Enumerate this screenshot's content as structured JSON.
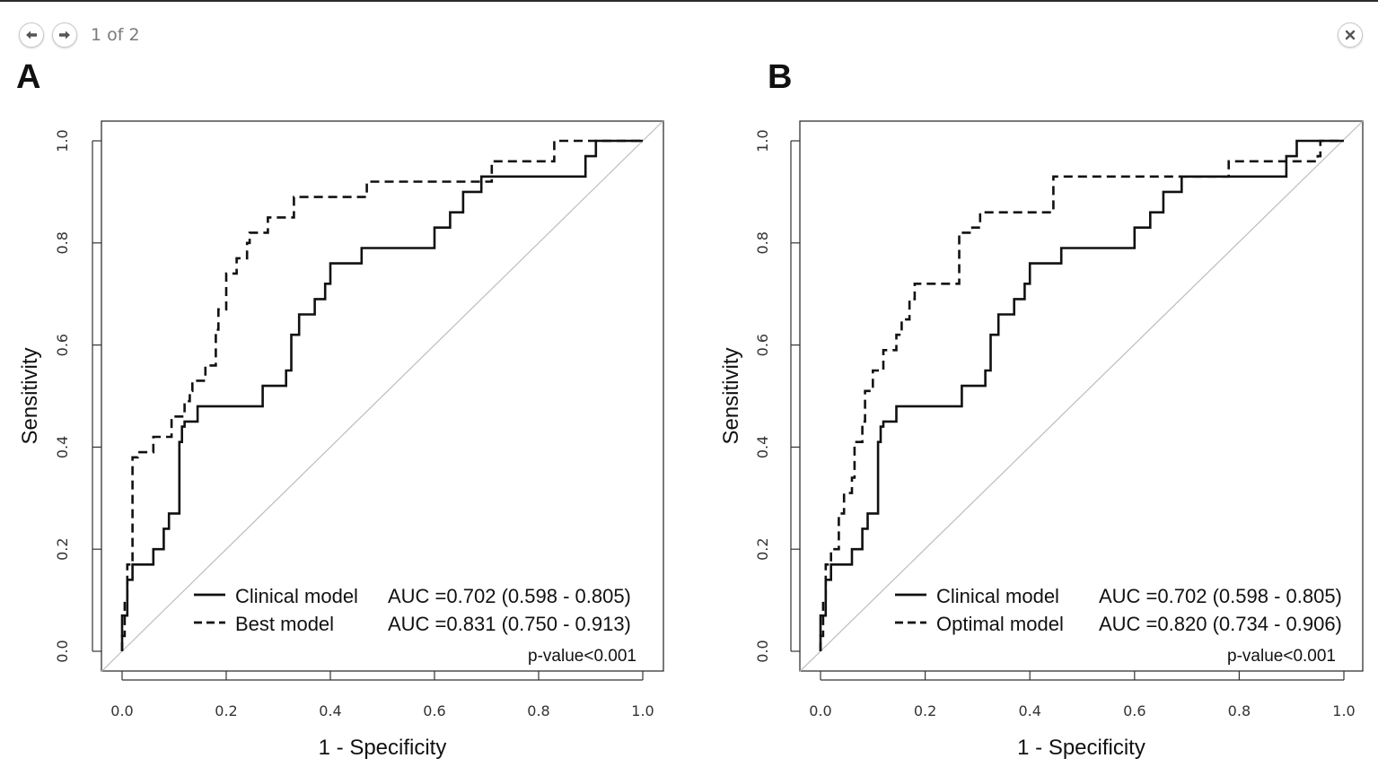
{
  "viewer": {
    "page_indicator": "1 of 2",
    "prev_icon": "arrow-left-icon",
    "next_icon": "arrow-right-icon",
    "close_icon": "close-icon"
  },
  "chart_data": [
    {
      "panel_label": "A",
      "type": "line",
      "subtype": "roc",
      "xlabel": "1 - Specificity",
      "ylabel": "Sensitivity",
      "xlim": [
        0,
        1
      ],
      "ylim": [
        0,
        1
      ],
      "xticks": [
        "0.0",
        "0.2",
        "0.4",
        "0.6",
        "0.8",
        "1.0"
      ],
      "yticks": [
        "0.0",
        "0.2",
        "0.4",
        "0.6",
        "0.8",
        "1.0"
      ],
      "legend_position": "bottom-right",
      "p_value": "p-value<0.001",
      "series": [
        {
          "name": "Clinical model",
          "auc_text": "AUC =0.702 (0.598 - 0.805)",
          "style": "solid",
          "points": [
            [
              0,
              0
            ],
            [
              0,
              0.07
            ],
            [
              0.01,
              0.07
            ],
            [
              0.01,
              0.14
            ],
            [
              0.02,
              0.14
            ],
            [
              0.02,
              0.17
            ],
            [
              0.06,
              0.17
            ],
            [
              0.06,
              0.2
            ],
            [
              0.08,
              0.2
            ],
            [
              0.08,
              0.24
            ],
            [
              0.09,
              0.24
            ],
            [
              0.09,
              0.27
            ],
            [
              0.11,
              0.27
            ],
            [
              0.11,
              0.41
            ],
            [
              0.115,
              0.41
            ],
            [
              0.115,
              0.44
            ],
            [
              0.12,
              0.44
            ],
            [
              0.12,
              0.45
            ],
            [
              0.145,
              0.45
            ],
            [
              0.145,
              0.48
            ],
            [
              0.27,
              0.48
            ],
            [
              0.27,
              0.52
            ],
            [
              0.315,
              0.52
            ],
            [
              0.315,
              0.55
            ],
            [
              0.325,
              0.55
            ],
            [
              0.325,
              0.62
            ],
            [
              0.34,
              0.62
            ],
            [
              0.34,
              0.66
            ],
            [
              0.37,
              0.66
            ],
            [
              0.37,
              0.69
            ],
            [
              0.39,
              0.69
            ],
            [
              0.39,
              0.72
            ],
            [
              0.4,
              0.72
            ],
            [
              0.4,
              0.76
            ],
            [
              0.46,
              0.76
            ],
            [
              0.46,
              0.79
            ],
            [
              0.6,
              0.79
            ],
            [
              0.6,
              0.83
            ],
            [
              0.63,
              0.83
            ],
            [
              0.63,
              0.86
            ],
            [
              0.655,
              0.86
            ],
            [
              0.655,
              0.9
            ],
            [
              0.69,
              0.9
            ],
            [
              0.69,
              0.93
            ],
            [
              0.89,
              0.93
            ],
            [
              0.89,
              0.97
            ],
            [
              0.91,
              0.97
            ],
            [
              0.91,
              1
            ],
            [
              1,
              1
            ]
          ]
        },
        {
          "name": "Best model",
          "auc_text": "AUC =0.831 (0.750 - 0.913)",
          "style": "dashed",
          "points": [
            [
              0,
              0
            ],
            [
              0,
              0.03
            ],
            [
              0.005,
              0.03
            ],
            [
              0.005,
              0.1
            ],
            [
              0.01,
              0.1
            ],
            [
              0.01,
              0.17
            ],
            [
              0.02,
              0.17
            ],
            [
              0.02,
              0.38
            ],
            [
              0.03,
              0.38
            ],
            [
              0.03,
              0.39
            ],
            [
              0.06,
              0.39
            ],
            [
              0.06,
              0.42
            ],
            [
              0.095,
              0.42
            ],
            [
              0.095,
              0.46
            ],
            [
              0.12,
              0.46
            ],
            [
              0.12,
              0.49
            ],
            [
              0.13,
              0.49
            ],
            [
              0.13,
              0.51
            ],
            [
              0.135,
              0.51
            ],
            [
              0.135,
              0.53
            ],
            [
              0.16,
              0.53
            ],
            [
              0.16,
              0.56
            ],
            [
              0.18,
              0.56
            ],
            [
              0.18,
              0.63
            ],
            [
              0.185,
              0.63
            ],
            [
              0.185,
              0.67
            ],
            [
              0.2,
              0.67
            ],
            [
              0.2,
              0.74
            ],
            [
              0.22,
              0.74
            ],
            [
              0.22,
              0.77
            ],
            [
              0.24,
              0.77
            ],
            [
              0.24,
              0.8
            ],
            [
              0.245,
              0.8
            ],
            [
              0.245,
              0.82
            ],
            [
              0.28,
              0.82
            ],
            [
              0.28,
              0.85
            ],
            [
              0.33,
              0.85
            ],
            [
              0.33,
              0.89
            ],
            [
              0.47,
              0.89
            ],
            [
              0.47,
              0.92
            ],
            [
              0.71,
              0.92
            ],
            [
              0.71,
              0.96
            ],
            [
              0.83,
              0.96
            ],
            [
              0.83,
              1
            ],
            [
              1,
              1
            ]
          ]
        }
      ]
    },
    {
      "panel_label": "B",
      "type": "line",
      "subtype": "roc",
      "xlabel": "1 - Specificity",
      "ylabel": "Sensitivity",
      "xlim": [
        0,
        1
      ],
      "ylim": [
        0,
        1
      ],
      "xticks": [
        "0.0",
        "0.2",
        "0.4",
        "0.6",
        "0.8",
        "1.0"
      ],
      "yticks": [
        "0.0",
        "0.2",
        "0.4",
        "0.6",
        "0.8",
        "1.0"
      ],
      "legend_position": "bottom-right",
      "p_value": "p-value<0.001",
      "series": [
        {
          "name": "Clinical model",
          "auc_text": "AUC =0.702 (0.598 - 0.805)",
          "style": "solid",
          "points": [
            [
              0,
              0
            ],
            [
              0,
              0.07
            ],
            [
              0.01,
              0.07
            ],
            [
              0.01,
              0.14
            ],
            [
              0.02,
              0.14
            ],
            [
              0.02,
              0.17
            ],
            [
              0.06,
              0.17
            ],
            [
              0.06,
              0.2
            ],
            [
              0.08,
              0.2
            ],
            [
              0.08,
              0.24
            ],
            [
              0.09,
              0.24
            ],
            [
              0.09,
              0.27
            ],
            [
              0.11,
              0.27
            ],
            [
              0.11,
              0.41
            ],
            [
              0.115,
              0.41
            ],
            [
              0.115,
              0.44
            ],
            [
              0.12,
              0.44
            ],
            [
              0.12,
              0.45
            ],
            [
              0.145,
              0.45
            ],
            [
              0.145,
              0.48
            ],
            [
              0.27,
              0.48
            ],
            [
              0.27,
              0.52
            ],
            [
              0.315,
              0.52
            ],
            [
              0.315,
              0.55
            ],
            [
              0.325,
              0.55
            ],
            [
              0.325,
              0.62
            ],
            [
              0.34,
              0.62
            ],
            [
              0.34,
              0.66
            ],
            [
              0.37,
              0.66
            ],
            [
              0.37,
              0.69
            ],
            [
              0.39,
              0.69
            ],
            [
              0.39,
              0.72
            ],
            [
              0.4,
              0.72
            ],
            [
              0.4,
              0.76
            ],
            [
              0.46,
              0.76
            ],
            [
              0.46,
              0.79
            ],
            [
              0.6,
              0.79
            ],
            [
              0.6,
              0.83
            ],
            [
              0.63,
              0.83
            ],
            [
              0.63,
              0.86
            ],
            [
              0.655,
              0.86
            ],
            [
              0.655,
              0.9
            ],
            [
              0.69,
              0.9
            ],
            [
              0.69,
              0.93
            ],
            [
              0.89,
              0.93
            ],
            [
              0.89,
              0.97
            ],
            [
              0.91,
              0.97
            ],
            [
              0.91,
              1
            ],
            [
              1,
              1
            ]
          ]
        },
        {
          "name": "Optimal model",
          "auc_text": "AUC =0.820 (0.734 - 0.906)",
          "style": "dashed",
          "points": [
            [
              0,
              0
            ],
            [
              0,
              0.03
            ],
            [
              0.005,
              0.03
            ],
            [
              0.005,
              0.1
            ],
            [
              0.01,
              0.1
            ],
            [
              0.01,
              0.17
            ],
            [
              0.02,
              0.17
            ],
            [
              0.02,
              0.2
            ],
            [
              0.035,
              0.2
            ],
            [
              0.035,
              0.27
            ],
            [
              0.045,
              0.27
            ],
            [
              0.045,
              0.31
            ],
            [
              0.06,
              0.31
            ],
            [
              0.06,
              0.34
            ],
            [
              0.065,
              0.34
            ],
            [
              0.065,
              0.41
            ],
            [
              0.08,
              0.41
            ],
            [
              0.08,
              0.45
            ],
            [
              0.085,
              0.45
            ],
            [
              0.085,
              0.51
            ],
            [
              0.1,
              0.51
            ],
            [
              0.1,
              0.55
            ],
            [
              0.12,
              0.55
            ],
            [
              0.12,
              0.59
            ],
            [
              0.145,
              0.59
            ],
            [
              0.145,
              0.62
            ],
            [
              0.155,
              0.62
            ],
            [
              0.155,
              0.65
            ],
            [
              0.17,
              0.65
            ],
            [
              0.17,
              0.69
            ],
            [
              0.18,
              0.69
            ],
            [
              0.18,
              0.72
            ],
            [
              0.265,
              0.72
            ],
            [
              0.265,
              0.82
            ],
            [
              0.29,
              0.82
            ],
            [
              0.29,
              0.83
            ],
            [
              0.305,
              0.83
            ],
            [
              0.305,
              0.86
            ],
            [
              0.445,
              0.86
            ],
            [
              0.445,
              0.93
            ],
            [
              0.78,
              0.93
            ],
            [
              0.78,
              0.96
            ],
            [
              0.95,
              0.96
            ],
            [
              0.95,
              0.97
            ],
            [
              0.955,
              0.97
            ],
            [
              0.955,
              1
            ],
            [
              1,
              1
            ]
          ]
        }
      ]
    }
  ]
}
